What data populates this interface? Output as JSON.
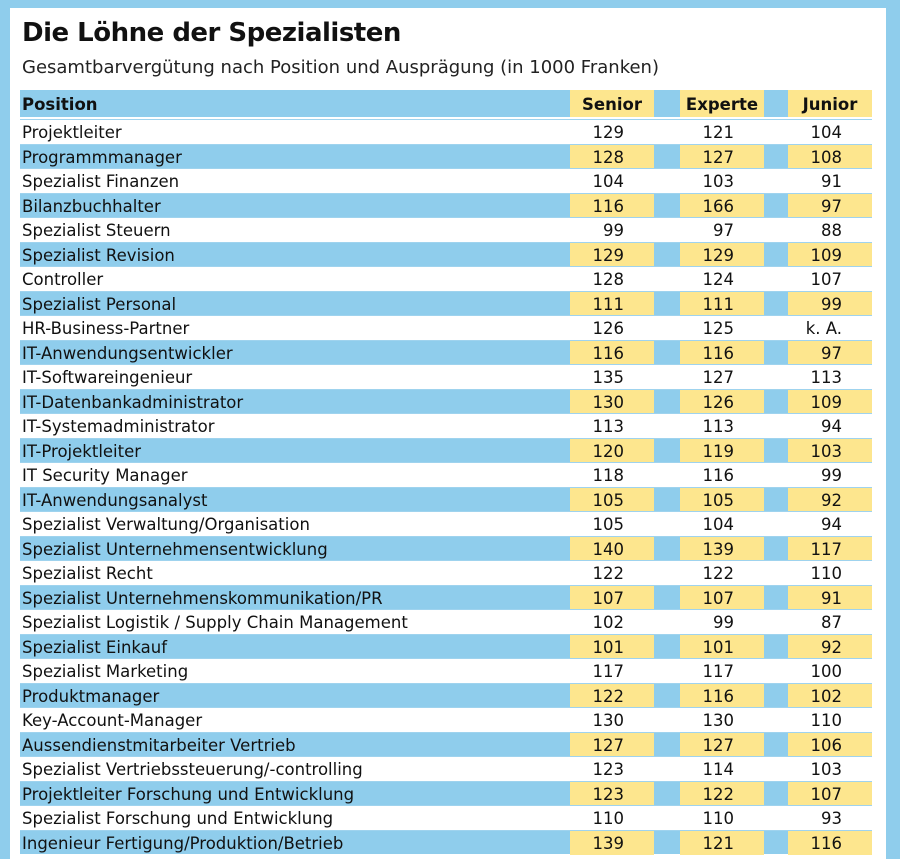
{
  "header": {
    "title": "Die Löhne der Spezialisten",
    "subtitle": "Gesamtbarvergütung nach Position und Ausprägung (in 1000 Franken)"
  },
  "table": {
    "columns": [
      "Position",
      "Senior",
      "Experte",
      "Junior"
    ],
    "rows": [
      [
        "Projektleiter",
        129,
        121,
        104
      ],
      [
        "Programmmanager",
        128,
        127,
        108
      ],
      [
        "Spezialist Finanzen",
        104,
        103,
        91
      ],
      [
        "Bilanzbuchhalter",
        116,
        166,
        97
      ],
      [
        "Spezialist Steuern",
        99,
        97,
        88
      ],
      [
        "Spezialist Revision",
        129,
        129,
        109
      ],
      [
        "Controller",
        128,
        124,
        107
      ],
      [
        "Spezialist Personal",
        111,
        111,
        99
      ],
      [
        "HR-Business-Partner",
        126,
        125,
        "k. A."
      ],
      [
        "IT-Anwendungsentwickler",
        116,
        116,
        97
      ],
      [
        "IT-Softwareingenieur",
        135,
        127,
        113
      ],
      [
        "IT-Datenbankadministrator",
        130,
        126,
        109
      ],
      [
        "IT-Systemadministrator",
        113,
        113,
        94
      ],
      [
        "IT-Projektleiter",
        120,
        119,
        103
      ],
      [
        "IT Security Manager",
        118,
        116,
        99
      ],
      [
        "IT-Anwendungsanalyst",
        105,
        105,
        92
      ],
      [
        "Spezialist Verwaltung/Organisation",
        105,
        104,
        94
      ],
      [
        "Spezialist Unternehmensentwicklung",
        140,
        139,
        117
      ],
      [
        "Spezialist Recht",
        122,
        122,
        110
      ],
      [
        "Spezialist Unternehmenskommunikation/PR",
        107,
        107,
        91
      ],
      [
        "Spezialist Logistik / Supply Chain Management",
        102,
        99,
        87
      ],
      [
        "Spezialist Einkauf",
        101,
        101,
        92
      ],
      [
        "Spezialist Marketing",
        117,
        117,
        100
      ],
      [
        "Produktmanager",
        122,
        116,
        102
      ],
      [
        "Key-Account-Manager",
        130,
        130,
        110
      ],
      [
        "Aussendienstmitarbeiter Vertrieb",
        127,
        127,
        106
      ],
      [
        "Spezialist Vertriebssteuerung/-controlling",
        123,
        114,
        103
      ],
      [
        "Projektleiter Forschung und Entwicklung",
        123,
        122,
        107
      ],
      [
        "Spezialist Forschung und Entwicklung",
        110,
        110,
        93
      ],
      [
        "Ingenieur Fertigung/Produktion/Betrieb",
        139,
        121,
        116
      ]
    ]
  }
}
